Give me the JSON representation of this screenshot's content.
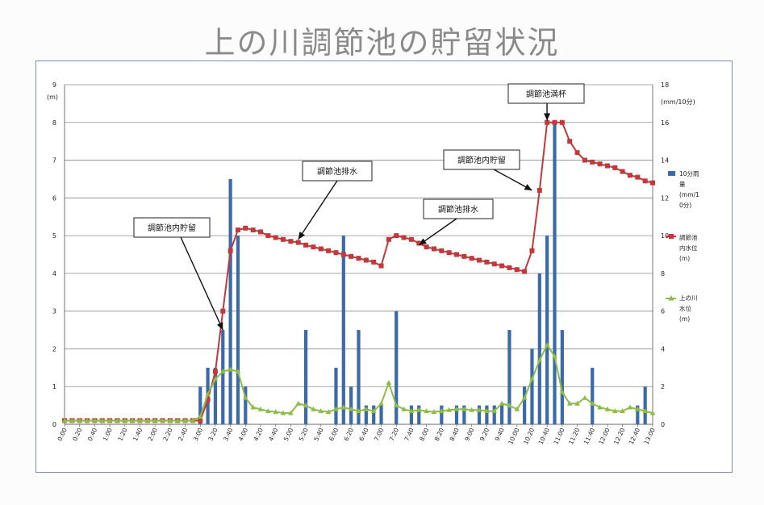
{
  "title": "上の川調節池の貯留状況",
  "colors": {
    "rain": "#3b6aa8",
    "storage": "#c0393b",
    "river": "#8fbb4a",
    "grid": "#8c8c8c",
    "frame": "#7d8fb8"
  },
  "chart_data": {
    "type": "bar+line",
    "y_left": {
      "label": "(m)",
      "ylim": [
        0,
        9
      ],
      "ticks": [
        "0",
        "1",
        "2",
        "3",
        "4",
        "5",
        "6",
        "7",
        "8",
        "9"
      ]
    },
    "y_right": {
      "label": "(mm/10分)",
      "ylim": [
        0,
        18
      ],
      "ticks": [
        "0",
        "2",
        "4",
        "6",
        "8",
        "10",
        "12",
        "14",
        "16",
        "18"
      ]
    },
    "x_ticks": [
      "0:00",
      "0:20",
      "0:40",
      "1:00",
      "1:20",
      "1:40",
      "2:00",
      "2:20",
      "2:40",
      "3:00",
      "3:20",
      "3:40",
      "4:00",
      "4:20",
      "4:40",
      "5:00",
      "5:20",
      "5:40",
      "6:00",
      "6:20",
      "6:40",
      "7:00",
      "7:20",
      "7:40",
      "8:00",
      "8:20",
      "8:40",
      "9:00",
      "9:20",
      "9:40",
      "10:00",
      "10:20",
      "10:40",
      "11:00",
      "11:20",
      "11:40",
      "12:00",
      "12:20",
      "12:40",
      "13:00"
    ],
    "grid": true,
    "legend": {
      "placement": "right",
      "rain": [
        "10分雨",
        "量",
        "(mm/1",
        "0分)"
      ],
      "storage": [
        "調節池",
        "内水位",
        "(m)"
      ],
      "river": [
        "上の川",
        "水位",
        "(m)"
      ]
    },
    "annotations": [
      {
        "text": "調節池内貯留",
        "arrow_to_time": "3:30",
        "arrow_to_value": 2.5
      },
      {
        "text": "調節池排水",
        "arrow_to_time": "5:10",
        "arrow_to_value": 4.9
      },
      {
        "text": "調節池排水",
        "arrow_to_time": "7:50",
        "arrow_to_value": 4.75
      },
      {
        "text": "調節池内貯留",
        "arrow_to_time": "10:20",
        "arrow_to_value": 6.2
      },
      {
        "text": "調節池満杯",
        "arrow_to_time": "10:40",
        "arrow_to_value": 8.05
      }
    ],
    "rain_mm_10min": [
      {
        "t": "3:00",
        "v": 2
      },
      {
        "t": "3:10",
        "v": 3
      },
      {
        "t": "3:20",
        "v": 3
      },
      {
        "t": "3:30",
        "v": 5
      },
      {
        "t": "3:40",
        "v": 13
      },
      {
        "t": "3:50",
        "v": 10
      },
      {
        "t": "4:00",
        "v": 2
      },
      {
        "t": "5:20",
        "v": 5
      },
      {
        "t": "6:00",
        "v": 3
      },
      {
        "t": "6:10",
        "v": 10
      },
      {
        "t": "6:20",
        "v": 2
      },
      {
        "t": "6:30",
        "v": 5
      },
      {
        "t": "6:40",
        "v": 1
      },
      {
        "t": "6:50",
        "v": 1
      },
      {
        "t": "7:00",
        "v": 1
      },
      {
        "t": "7:20",
        "v": 6
      },
      {
        "t": "7:40",
        "v": 1
      },
      {
        "t": "7:50",
        "v": 1
      },
      {
        "t": "8:20",
        "v": 1
      },
      {
        "t": "8:40",
        "v": 1
      },
      {
        "t": "8:50",
        "v": 1
      },
      {
        "t": "9:10",
        "v": 1
      },
      {
        "t": "9:20",
        "v": 1
      },
      {
        "t": "9:30",
        "v": 1
      },
      {
        "t": "9:40",
        "v": 1
      },
      {
        "t": "9:50",
        "v": 5
      },
      {
        "t": "10:10",
        "v": 2
      },
      {
        "t": "10:20",
        "v": 4
      },
      {
        "t": "10:30",
        "v": 8
      },
      {
        "t": "10:40",
        "v": 10
      },
      {
        "t": "10:50",
        "v": 16
      },
      {
        "t": "11:00",
        "v": 5
      },
      {
        "t": "11:40",
        "v": 3
      },
      {
        "t": "12:40",
        "v": 1
      },
      {
        "t": "12:50",
        "v": 2
      }
    ],
    "storage_level_m": [
      {
        "t": "0:00",
        "v": 0.1
      },
      {
        "t": "0:10",
        "v": 0.1
      },
      {
        "t": "0:20",
        "v": 0.1
      },
      {
        "t": "0:30",
        "v": 0.1
      },
      {
        "t": "0:40",
        "v": 0.1
      },
      {
        "t": "0:50",
        "v": 0.1
      },
      {
        "t": "1:00",
        "v": 0.1
      },
      {
        "t": "1:10",
        "v": 0.1
      },
      {
        "t": "1:20",
        "v": 0.1
      },
      {
        "t": "1:30",
        "v": 0.1
      },
      {
        "t": "1:40",
        "v": 0.1
      },
      {
        "t": "1:50",
        "v": 0.1
      },
      {
        "t": "2:00",
        "v": 0.1
      },
      {
        "t": "2:10",
        "v": 0.1
      },
      {
        "t": "2:20",
        "v": 0.1
      },
      {
        "t": "2:30",
        "v": 0.1
      },
      {
        "t": "2:40",
        "v": 0.1
      },
      {
        "t": "2:50",
        "v": 0.1
      },
      {
        "t": "3:00",
        "v": 0.1
      },
      {
        "t": "3:10",
        "v": 0.65
      },
      {
        "t": "3:20",
        "v": 1.4
      },
      {
        "t": "3:30",
        "v": 3.0
      },
      {
        "t": "3:40",
        "v": 4.6
      },
      {
        "t": "3:50",
        "v": 5.15
      },
      {
        "t": "4:00",
        "v": 5.2
      },
      {
        "t": "4:10",
        "v": 5.15
      },
      {
        "t": "4:20",
        "v": 5.1
      },
      {
        "t": "4:30",
        "v": 5.0
      },
      {
        "t": "4:40",
        "v": 4.95
      },
      {
        "t": "4:50",
        "v": 4.9
      },
      {
        "t": "5:00",
        "v": 4.85
      },
      {
        "t": "5:10",
        "v": 4.82
      },
      {
        "t": "5:20",
        "v": 4.75
      },
      {
        "t": "5:30",
        "v": 4.7
      },
      {
        "t": "5:40",
        "v": 4.65
      },
      {
        "t": "5:50",
        "v": 4.6
      },
      {
        "t": "6:00",
        "v": 4.55
      },
      {
        "t": "6:10",
        "v": 4.5
      },
      {
        "t": "6:20",
        "v": 4.45
      },
      {
        "t": "6:30",
        "v": 4.4
      },
      {
        "t": "6:40",
        "v": 4.35
      },
      {
        "t": "6:50",
        "v": 4.3
      },
      {
        "t": "7:00",
        "v": 4.2
      },
      {
        "t": "7:10",
        "v": 4.9
      },
      {
        "t": "7:20",
        "v": 5.0
      },
      {
        "t": "7:30",
        "v": 4.95
      },
      {
        "t": "7:40",
        "v": 4.9
      },
      {
        "t": "7:50",
        "v": 4.8
      },
      {
        "t": "8:00",
        "v": 4.7
      },
      {
        "t": "8:10",
        "v": 4.65
      },
      {
        "t": "8:20",
        "v": 4.6
      },
      {
        "t": "8:30",
        "v": 4.55
      },
      {
        "t": "8:40",
        "v": 4.5
      },
      {
        "t": "8:50",
        "v": 4.45
      },
      {
        "t": "9:00",
        "v": 4.4
      },
      {
        "t": "9:10",
        "v": 4.35
      },
      {
        "t": "9:20",
        "v": 4.3
      },
      {
        "t": "9:30",
        "v": 4.25
      },
      {
        "t": "9:40",
        "v": 4.2
      },
      {
        "t": "9:50",
        "v": 4.15
      },
      {
        "t": "10:00",
        "v": 4.1
      },
      {
        "t": "10:10",
        "v": 4.05
      },
      {
        "t": "10:20",
        "v": 4.6
      },
      {
        "t": "10:30",
        "v": 6.2
      },
      {
        "t": "10:40",
        "v": 8.0
      },
      {
        "t": "10:50",
        "v": 8.0
      },
      {
        "t": "11:00",
        "v": 8.0
      },
      {
        "t": "11:10",
        "v": 7.5
      },
      {
        "t": "11:20",
        "v": 7.2
      },
      {
        "t": "11:30",
        "v": 7.0
      },
      {
        "t": "11:40",
        "v": 6.95
      },
      {
        "t": "11:50",
        "v": 6.9
      },
      {
        "t": "12:00",
        "v": 6.85
      },
      {
        "t": "12:10",
        "v": 6.8
      },
      {
        "t": "12:20",
        "v": 6.7
      },
      {
        "t": "12:30",
        "v": 6.6
      },
      {
        "t": "12:40",
        "v": 6.55
      },
      {
        "t": "12:50",
        "v": 6.45
      },
      {
        "t": "13:00",
        "v": 6.4
      }
    ],
    "river_level_m": [
      {
        "t": "0:00",
        "v": 0.1
      },
      {
        "t": "0:10",
        "v": 0.1
      },
      {
        "t": "0:20",
        "v": 0.1
      },
      {
        "t": "0:30",
        "v": 0.1
      },
      {
        "t": "0:40",
        "v": 0.1
      },
      {
        "t": "0:50",
        "v": 0.1
      },
      {
        "t": "1:00",
        "v": 0.1
      },
      {
        "t": "1:10",
        "v": 0.1
      },
      {
        "t": "1:20",
        "v": 0.1
      },
      {
        "t": "1:30",
        "v": 0.1
      },
      {
        "t": "1:40",
        "v": 0.1
      },
      {
        "t": "1:50",
        "v": 0.1
      },
      {
        "t": "2:00",
        "v": 0.1
      },
      {
        "t": "2:10",
        "v": 0.1
      },
      {
        "t": "2:20",
        "v": 0.1
      },
      {
        "t": "2:30",
        "v": 0.1
      },
      {
        "t": "2:40",
        "v": 0.1
      },
      {
        "t": "2:50",
        "v": 0.1
      },
      {
        "t": "3:00",
        "v": 0.2
      },
      {
        "t": "3:10",
        "v": 0.8
      },
      {
        "t": "3:20",
        "v": 1.2
      },
      {
        "t": "3:30",
        "v": 1.4
      },
      {
        "t": "3:40",
        "v": 1.45
      },
      {
        "t": "3:50",
        "v": 1.4
      },
      {
        "t": "4:00",
        "v": 0.7
      },
      {
        "t": "4:10",
        "v": 0.45
      },
      {
        "t": "4:20",
        "v": 0.4
      },
      {
        "t": "4:30",
        "v": 0.35
      },
      {
        "t": "4:40",
        "v": 0.33
      },
      {
        "t": "4:50",
        "v": 0.3
      },
      {
        "t": "5:00",
        "v": 0.3
      },
      {
        "t": "5:10",
        "v": 0.55
      },
      {
        "t": "5:20",
        "v": 0.5
      },
      {
        "t": "5:30",
        "v": 0.4
      },
      {
        "t": "5:40",
        "v": 0.35
      },
      {
        "t": "5:50",
        "v": 0.33
      },
      {
        "t": "6:00",
        "v": 0.4
      },
      {
        "t": "6:10",
        "v": 0.45
      },
      {
        "t": "6:20",
        "v": 0.4
      },
      {
        "t": "6:30",
        "v": 0.35
      },
      {
        "t": "6:40",
        "v": 0.4
      },
      {
        "t": "6:50",
        "v": 0.35
      },
      {
        "t": "7:00",
        "v": 0.55
      },
      {
        "t": "7:10",
        "v": 1.1
      },
      {
        "t": "7:20",
        "v": 0.5
      },
      {
        "t": "7:30",
        "v": 0.4
      },
      {
        "t": "7:40",
        "v": 0.35
      },
      {
        "t": "7:50",
        "v": 0.38
      },
      {
        "t": "8:00",
        "v": 0.35
      },
      {
        "t": "8:10",
        "v": 0.33
      },
      {
        "t": "8:20",
        "v": 0.35
      },
      {
        "t": "8:30",
        "v": 0.38
      },
      {
        "t": "8:40",
        "v": 0.4
      },
      {
        "t": "8:50",
        "v": 0.4
      },
      {
        "t": "9:00",
        "v": 0.38
      },
      {
        "t": "9:10",
        "v": 0.38
      },
      {
        "t": "9:20",
        "v": 0.35
      },
      {
        "t": "9:30",
        "v": 0.35
      },
      {
        "t": "9:40",
        "v": 0.55
      },
      {
        "t": "9:50",
        "v": 0.5
      },
      {
        "t": "10:00",
        "v": 0.4
      },
      {
        "t": "10:10",
        "v": 0.7
      },
      {
        "t": "10:20",
        "v": 1.2
      },
      {
        "t": "10:30",
        "v": 1.7
      },
      {
        "t": "10:40",
        "v": 2.1
      },
      {
        "t": "10:50",
        "v": 1.8
      },
      {
        "t": "11:00",
        "v": 0.85
      },
      {
        "t": "11:10",
        "v": 0.55
      },
      {
        "t": "11:20",
        "v": 0.55
      },
      {
        "t": "11:30",
        "v": 0.7
      },
      {
        "t": "11:40",
        "v": 0.55
      },
      {
        "t": "11:50",
        "v": 0.45
      },
      {
        "t": "12:00",
        "v": 0.4
      },
      {
        "t": "12:10",
        "v": 0.35
      },
      {
        "t": "12:20",
        "v": 0.35
      },
      {
        "t": "12:30",
        "v": 0.45
      },
      {
        "t": "12:40",
        "v": 0.4
      },
      {
        "t": "12:50",
        "v": 0.35
      },
      {
        "t": "13:00",
        "v": 0.3
      }
    ]
  }
}
